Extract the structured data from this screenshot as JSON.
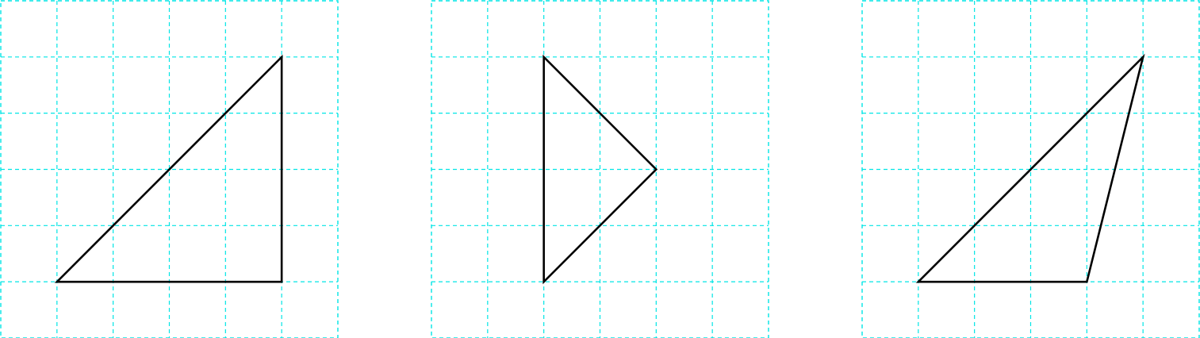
{
  "figure": {
    "grid_color": "#00e5e5",
    "line_color": "#000000",
    "panels": [
      {
        "name": "panel-1",
        "grid_cells": [
          6,
          6
        ],
        "shape": "right-triangle",
        "vertices": [
          [
            1,
            5
          ],
          [
            5,
            5
          ],
          [
            5,
            1
          ]
        ]
      },
      {
        "name": "panel-2",
        "grid_cells": [
          6,
          6
        ],
        "shape": "isosceles-right-triangle",
        "vertices": [
          [
            2,
            1
          ],
          [
            2,
            5
          ],
          [
            4,
            3
          ]
        ]
      },
      {
        "name": "panel-3",
        "grid_cells": [
          6,
          6
        ],
        "shape": "obtuse-triangle",
        "vertices": [
          [
            1,
            5
          ],
          [
            4,
            5
          ],
          [
            5,
            1
          ]
        ]
      }
    ]
  }
}
